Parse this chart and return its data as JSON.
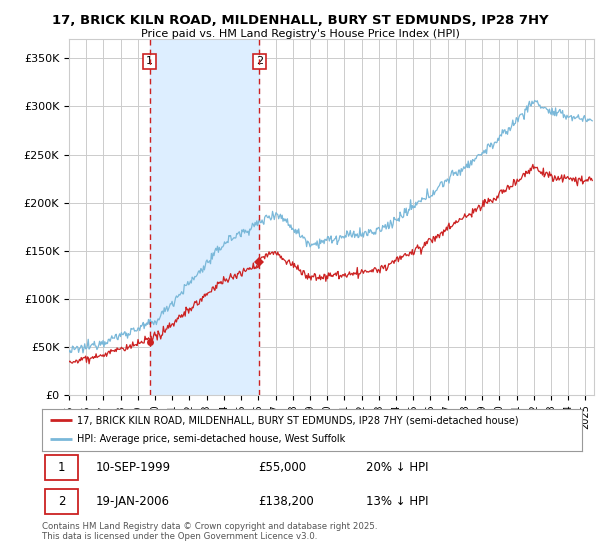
{
  "title": "17, BRICK KILN ROAD, MILDENHALL, BURY ST EDMUNDS, IP28 7HY",
  "subtitle": "Price paid vs. HM Land Registry's House Price Index (HPI)",
  "ylim": [
    0,
    370000
  ],
  "yticks": [
    0,
    50000,
    100000,
    150000,
    200000,
    250000,
    300000,
    350000
  ],
  "ytick_labels": [
    "£0",
    "£50K",
    "£100K",
    "£150K",
    "£200K",
    "£250K",
    "£300K",
    "£350K"
  ],
  "purchase1": {
    "date_num": 1999.69,
    "price": 55000,
    "label": "1",
    "date_str": "10-SEP-1999",
    "price_str": "£55,000",
    "hpi_str": "20% ↓ HPI"
  },
  "purchase2": {
    "date_num": 2006.05,
    "price": 138200,
    "label": "2",
    "date_str": "19-JAN-2006",
    "price_str": "£138,200",
    "hpi_str": "13% ↓ HPI"
  },
  "hpi_line_color": "#7ab8d9",
  "price_line_color": "#cc2222",
  "vline_color": "#cc2222",
  "fill_color": "#ddeeff",
  "grid_color": "#cccccc",
  "background_color": "#ffffff",
  "legend_label_price": "17, BRICK KILN ROAD, MILDENHALL, BURY ST EDMUNDS, IP28 7HY (semi-detached house)",
  "legend_label_hpi": "HPI: Average price, semi-detached house, West Suffolk",
  "footnote": "Contains HM Land Registry data © Crown copyright and database right 2025.\nThis data is licensed under the Open Government Licence v3.0.",
  "xlim_start": 1995.0,
  "xlim_end": 2025.5
}
